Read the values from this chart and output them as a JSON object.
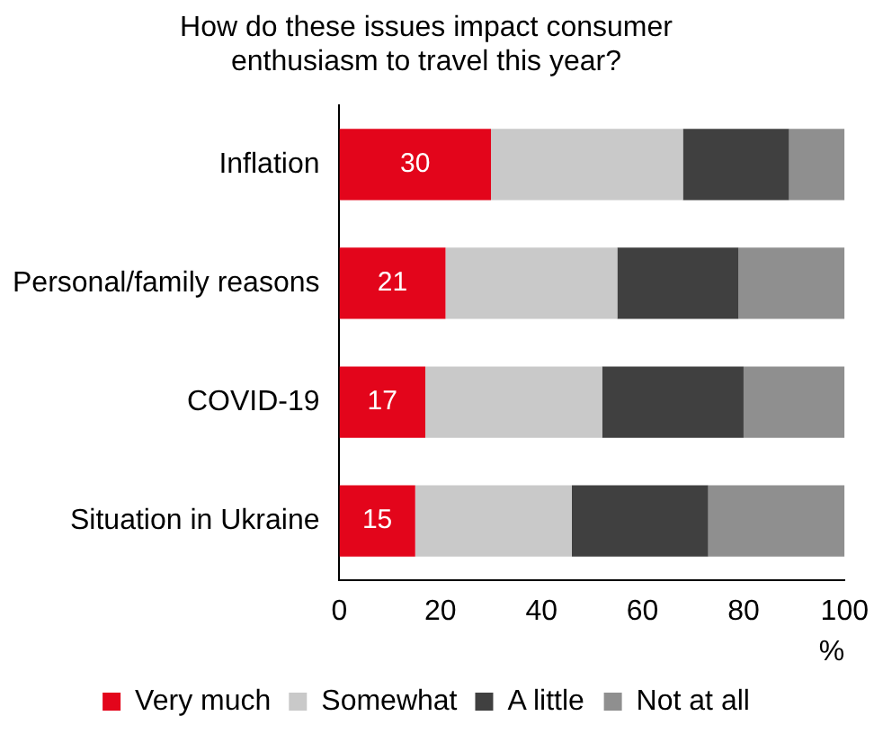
{
  "chart_data": {
    "type": "bar",
    "orientation": "horizontal",
    "stacked": true,
    "title": "How do these issues impact consumer enthusiasm to travel this year?",
    "categories": [
      "Inflation",
      "Personal/family reasons",
      "COVID-19",
      "Situation in Ukraine"
    ],
    "series": [
      {
        "name": "Very much",
        "color": "#e3051b",
        "values": [
          30,
          21,
          17,
          15
        ],
        "value_labels": [
          "30",
          "21",
          "17",
          "15"
        ]
      },
      {
        "name": "Somewhat",
        "color": "#c9c9c9",
        "values": [
          38,
          34,
          35,
          31
        ]
      },
      {
        "name": "A little",
        "color": "#404040",
        "values": [
          21,
          24,
          28,
          27
        ]
      },
      {
        "name": "Not at all",
        "color": "#8f8f8f",
        "values": [
          11,
          21,
          20,
          27
        ]
      }
    ],
    "xlim": [
      0,
      100
    ],
    "xticks": [
      0,
      20,
      40,
      60,
      80,
      100
    ],
    "xlabel": "%",
    "grid": false,
    "legend": "bottom"
  }
}
